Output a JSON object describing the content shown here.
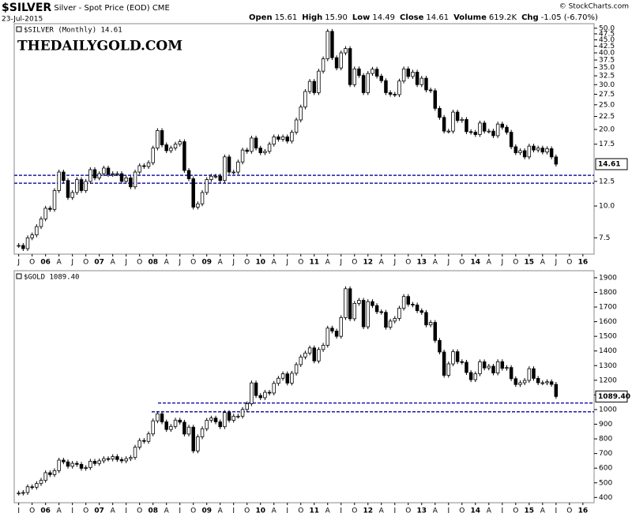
{
  "header": {
    "symbol": "$SILVER",
    "description": "Silver - Spot Price (EOD)",
    "exchange": "CME",
    "date": "23-Jul-2015",
    "quote": [
      [
        "Open",
        "15.61"
      ],
      [
        "High",
        "15.90"
      ],
      [
        "Low",
        "14.49"
      ],
      [
        "Close",
        "14.61"
      ],
      [
        "Volume",
        "619.2K"
      ],
      [
        "Chg",
        "-1.05 (-6.70%)"
      ]
    ],
    "credit": "© StockCharts.com",
    "watermark": "THEDAILYGOLD.COM"
  },
  "chart_data": [
    {
      "type": "candlestick",
      "legend": "$SILVER (Monthly) 14.61",
      "last_label": "14.61",
      "log_scale": true,
      "ylim": [
        6.47,
        52.1
      ],
      "yticks": [
        7.5,
        {
          "value": 10,
          "label": "10.0"
        },
        12.5,
        17.5,
        {
          "value": 20,
          "label": "20.0"
        },
        22.5,
        {
          "value": 25,
          "label": "25.0"
        },
        27.5,
        {
          "value": 30,
          "label": "30.0"
        },
        32.5,
        {
          "value": 35,
          "label": "35.0"
        },
        37.5,
        {
          "value": 40,
          "label": "40.0"
        },
        42.5,
        {
          "value": 45,
          "label": "45.0"
        },
        47.5,
        {
          "value": 50,
          "label": "50.0"
        }
      ],
      "xlim": [
        -1,
        128.5
      ],
      "xticks": [
        {
          "value": 0,
          "label": "J"
        },
        {
          "value": 3,
          "label": "O"
        },
        {
          "value": 6,
          "label": "06"
        },
        {
          "value": 9,
          "label": "A"
        },
        {
          "value": 12,
          "label": "J"
        },
        {
          "value": 15,
          "label": "O"
        },
        {
          "value": 18,
          "label": "07"
        },
        {
          "value": 21,
          "label": "A"
        },
        {
          "value": 24,
          "label": "J"
        },
        {
          "value": 27,
          "label": "O"
        },
        {
          "value": 30,
          "label": "08"
        },
        {
          "value": 33,
          "label": "A"
        },
        {
          "value": 36,
          "label": "J"
        },
        {
          "value": 39,
          "label": "O"
        },
        {
          "value": 42,
          "label": "09"
        },
        {
          "value": 45,
          "label": "A"
        },
        {
          "value": 48,
          "label": "J"
        },
        {
          "value": 51,
          "label": "O"
        },
        {
          "value": 54,
          "label": "10"
        },
        {
          "value": 57,
          "label": "A"
        },
        {
          "value": 60,
          "label": "J"
        },
        {
          "value": 63,
          "label": "O"
        },
        {
          "value": 66,
          "label": "11"
        },
        {
          "value": 69,
          "label": "A"
        },
        {
          "value": 72,
          "label": "J"
        },
        {
          "value": 75,
          "label": "O"
        },
        {
          "value": 78,
          "label": "12"
        },
        {
          "value": 81,
          "label": "A"
        },
        {
          "value": 84,
          "label": "J"
        },
        {
          "value": 87,
          "label": "O"
        },
        {
          "value": 90,
          "label": "13"
        },
        {
          "value": 93,
          "label": "A"
        },
        {
          "value": 96,
          "label": "J"
        },
        {
          "value": 99,
          "label": "O"
        },
        {
          "value": 102,
          "label": "14"
        },
        {
          "value": 105,
          "label": "A"
        },
        {
          "value": 108,
          "label": "J"
        },
        {
          "value": 111,
          "label": "O"
        },
        {
          "value": 114,
          "label": "15"
        },
        {
          "value": 117,
          "label": "A"
        },
        {
          "value": 120,
          "label": "J"
        },
        {
          "value": 123,
          "label": "O"
        },
        {
          "value": 126,
          "label": "16"
        }
      ],
      "levels": [
        13.2,
        12.3
      ],
      "level_color": "#1a1aa8",
      "series": [
        {
          "values": [
            7.0,
            6.8,
            7.5,
            7.7,
            8.3,
            8.9,
            9.8,
            9.7,
            11.5,
            13.6,
            12.6,
            10.8,
            11.3,
            12.7,
            11.5,
            12.5,
            13.9,
            12.9,
            13.4,
            14.1,
            13.3,
            13.4,
            13.4,
            12.5,
            12.9,
            11.9,
            13.6,
            14.4,
            14.3,
            14.8,
            16.9,
            19.8,
            17.4,
            16.5,
            16.9,
            17.5,
            17.9,
            13.8,
            12.8,
            9.9,
            10.2,
            11.3,
            12.7,
            13.1,
            13.1,
            12.6,
            15.6,
            13.6,
            13.6,
            14.9,
            16.6,
            16.4,
            18.5,
            16.9,
            16.2,
            16.4,
            17.5,
            18.7,
            18.3,
            18.7,
            18.0,
            19.5,
            21.8,
            24.5,
            28.2,
            30.9,
            27.9,
            33.9,
            37.9,
            48.6,
            38.3,
            34.9,
            40.0,
            41.6,
            30.0,
            34.6,
            32.6,
            27.9,
            33.2,
            34.5,
            32.4,
            31.1,
            27.9,
            27.5,
            27.4,
            31.0,
            34.6,
            32.3,
            33.6,
            30.0,
            31.8,
            28.6,
            28.4,
            24.2,
            22.3,
            19.7,
            19.7,
            23.4,
            21.7,
            21.9,
            19.6,
            19.5,
            19.1,
            21.2,
            19.7,
            19.7,
            18.9,
            21.0,
            20.4,
            19.5,
            17.1,
            16.2,
            16.5,
            15.6,
            17.2,
            16.6,
            16.9,
            16.3,
            16.8,
            15.6,
            14.61
          ]
        }
      ]
    },
    {
      "type": "candlestick",
      "legend": "$GOLD 1089.40",
      "last_label": "1089.40",
      "log_scale": false,
      "ylim": [
        364,
        1948
      ],
      "yticks": [
        400,
        500,
        600,
        700,
        800,
        900,
        1000,
        1100,
        1200,
        1300,
        1400,
        1500,
        1600,
        1700,
        1800,
        1900
      ],
      "xlim": [
        -1,
        128.5
      ],
      "xticks": [
        {
          "value": 0,
          "label": "J"
        },
        {
          "value": 3,
          "label": "O"
        },
        {
          "value": 6,
          "label": "06"
        },
        {
          "value": 9,
          "label": "A"
        },
        {
          "value": 12,
          "label": "J"
        },
        {
          "value": 15,
          "label": "O"
        },
        {
          "value": 18,
          "label": "07"
        },
        {
          "value": 21,
          "label": "A"
        },
        {
          "value": 24,
          "label": "J"
        },
        {
          "value": 27,
          "label": "O"
        },
        {
          "value": 30,
          "label": "08"
        },
        {
          "value": 33,
          "label": "A"
        },
        {
          "value": 36,
          "label": "J"
        },
        {
          "value": 39,
          "label": "O"
        },
        {
          "value": 42,
          "label": "09"
        },
        {
          "value": 45,
          "label": "A"
        },
        {
          "value": 48,
          "label": "J"
        },
        {
          "value": 51,
          "label": "O"
        },
        {
          "value": 54,
          "label": "10"
        },
        {
          "value": 57,
          "label": "A"
        },
        {
          "value": 60,
          "label": "J"
        },
        {
          "value": 63,
          "label": "O"
        },
        {
          "value": 66,
          "label": "11"
        },
        {
          "value": 69,
          "label": "A"
        },
        {
          "value": 72,
          "label": "J"
        },
        {
          "value": 75,
          "label": "O"
        },
        {
          "value": 78,
          "label": "12"
        },
        {
          "value": 81,
          "label": "A"
        },
        {
          "value": 84,
          "label": "J"
        },
        {
          "value": 87,
          "label": "O"
        },
        {
          "value": 90,
          "label": "13"
        },
        {
          "value": 93,
          "label": "A"
        },
        {
          "value": 96,
          "label": "J"
        },
        {
          "value": 99,
          "label": "O"
        },
        {
          "value": 102,
          "label": "14"
        },
        {
          "value": 105,
          "label": "A"
        },
        {
          "value": 108,
          "label": "J"
        },
        {
          "value": 111,
          "label": "O"
        },
        {
          "value": 114,
          "label": "15"
        },
        {
          "value": 117,
          "label": "A"
        },
        {
          "value": 120,
          "label": "J"
        },
        {
          "value": 123,
          "label": "O"
        },
        {
          "value": 126,
          "label": "16"
        }
      ],
      "levels": [
        1045,
        985
      ],
      "level_color": "#1a1aa8",
      "series": [
        {
          "values": [
            430,
            434,
            473,
            470,
            495,
            517,
            569,
            556,
            583,
            655,
            643,
            613,
            633,
            626,
            599,
            604,
            647,
            632,
            650,
            665,
            663,
            679,
            659,
            650,
            665,
            673,
            743,
            789,
            783,
            834,
            923,
            971,
            916,
            864,
            885,
            928,
            914,
            833,
            880,
            718,
            814,
            869,
            927,
            942,
            916,
            883,
            980,
            927,
            955,
            955,
            1001,
            1040,
            1182,
            1096,
            1081,
            1118,
            1113,
            1179,
            1214,
            1244,
            1181,
            1248,
            1307,
            1359,
            1386,
            1421,
            1332,
            1410,
            1439,
            1556,
            1536,
            1500,
            1628,
            1825,
            1620,
            1725,
            1746,
            1565,
            1737,
            1710,
            1668,
            1664,
            1562,
            1604,
            1622,
            1692,
            1772,
            1719,
            1714,
            1675,
            1663,
            1578,
            1595,
            1472,
            1393,
            1234,
            1312,
            1395,
            1327,
            1323,
            1253,
            1204,
            1244,
            1326,
            1284,
            1296,
            1250,
            1327,
            1282,
            1287,
            1211,
            1171,
            1183,
            1199,
            1279,
            1213,
            1183,
            1183,
            1190,
            1172,
            1089.4
          ]
        }
      ]
    }
  ]
}
